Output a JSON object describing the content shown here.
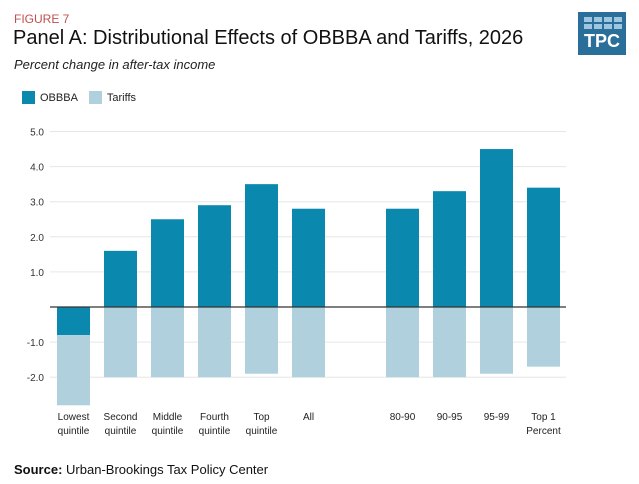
{
  "header": {
    "figure": "FIGURE 7",
    "title": "Panel A: Distributional Effects of OBBBA and Tariffs, 2026",
    "subtitle": "Percent change in after-tax income",
    "logo": "TPC"
  },
  "source": {
    "label": "Source:",
    "text": "Urban-Brookings Tax Policy Center"
  },
  "colors": {
    "obbba": "#0a88ad",
    "tariffs": "#afd0dc",
    "grid": "#e6e6e6",
    "zero": "#333333"
  },
  "chart_data": {
    "type": "bar",
    "stacked": true,
    "title": "Panel A: Distributional Effects of OBBBA and Tariffs, 2026",
    "ylabel": "Percent change in after-tax income",
    "ylim": [
      -3,
      5
    ],
    "yticks": [
      5,
      4,
      3,
      2,
      1,
      -1,
      -2
    ],
    "ytick_labels": [
      "5.0",
      "4.0",
      "3.0",
      "2.0",
      "1.0",
      "-1.0",
      "-2.0"
    ],
    "legend_position": "top-left",
    "categories": [
      [
        "Lowest",
        "quintile"
      ],
      [
        "Second",
        "quintile"
      ],
      [
        "Middle",
        "quintile"
      ],
      [
        "Fourth",
        "quintile"
      ],
      [
        "Top",
        "quintile"
      ],
      [
        "All"
      ],
      [
        "80-90"
      ],
      [
        "90-95"
      ],
      [
        "95-99"
      ],
      [
        "Top 1",
        "Percent"
      ]
    ],
    "series": [
      {
        "name": "OBBBA",
        "values": [
          -0.8,
          1.6,
          2.5,
          2.9,
          3.5,
          2.8,
          2.8,
          3.3,
          4.5,
          3.4
        ]
      },
      {
        "name": "Tariffs",
        "values": [
          -2.0,
          -2.0,
          -2.0,
          -2.0,
          -1.9,
          -2.0,
          -2.0,
          -2.0,
          -1.9,
          -1.7
        ]
      }
    ]
  }
}
